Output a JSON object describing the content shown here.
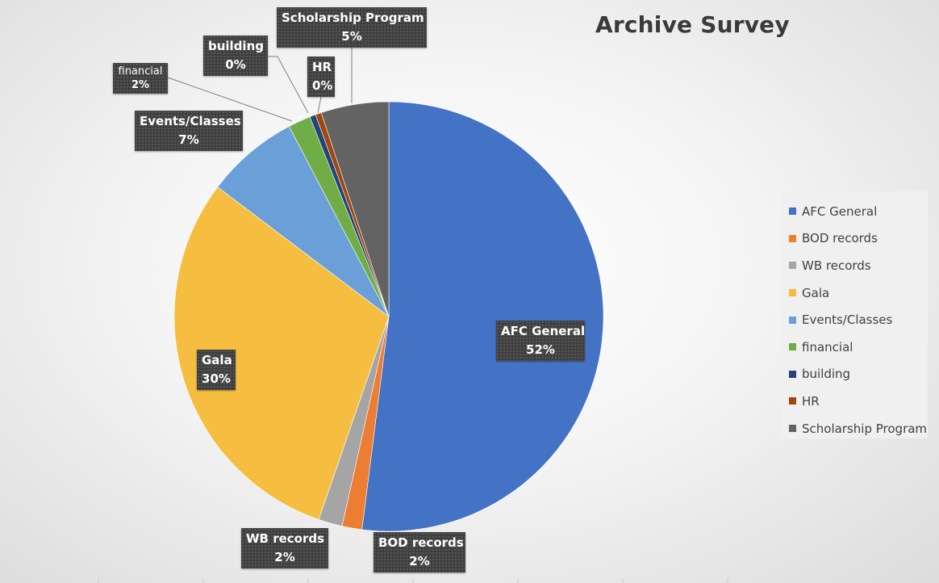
{
  "chart_data": {
    "type": "pie",
    "title": "Archive Survey",
    "legend_position": "right",
    "slices": [
      {
        "label": "AFC General",
        "value": 52,
        "display": "52%",
        "color": "#4472C4"
      },
      {
        "label": "BOD records",
        "value": 1.5,
        "display": "2%",
        "color": "#ED7D31"
      },
      {
        "label": "WB records",
        "value": 1.8,
        "display": "2%",
        "color": "#A5A5A5"
      },
      {
        "label": "Gala",
        "value": 30,
        "display": "30%",
        "color": "#F5BE41"
      },
      {
        "label": "Events/Classes",
        "value": 7,
        "display": "7%",
        "color": "#6A9FD8"
      },
      {
        "label": "financial",
        "value": 1.7,
        "display": "2%",
        "color": "#70AD47"
      },
      {
        "label": "building",
        "value": 0.45,
        "display": "0%",
        "color": "#264478"
      },
      {
        "label": "HR",
        "value": 0.45,
        "display": "0%",
        "color": "#9E480E"
      },
      {
        "label": "Scholarship Program",
        "value": 5.1,
        "display": "5%",
        "color": "#636363"
      }
    ]
  }
}
